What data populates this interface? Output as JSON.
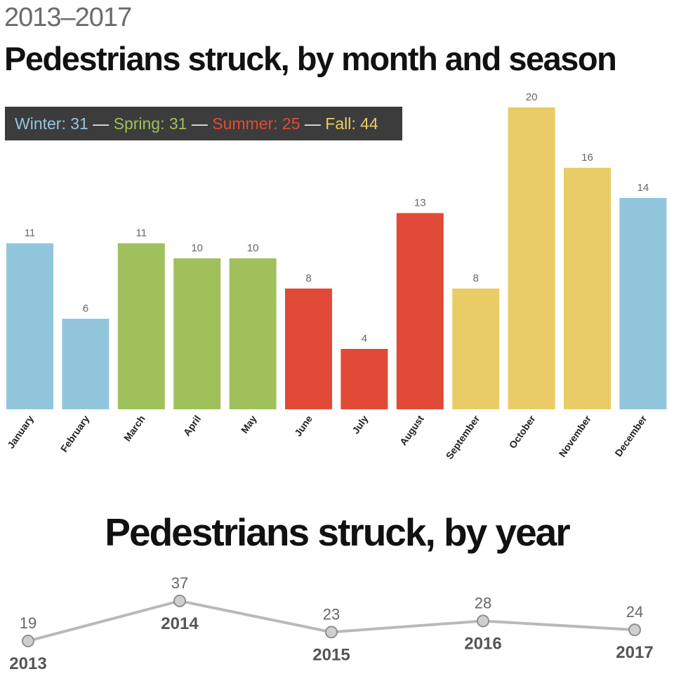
{
  "header": {
    "subtitle": "2013–2017",
    "title": "Pedestrians struck, by month and season"
  },
  "legend": {
    "items": [
      {
        "label": "Winter: 31",
        "color": "#92c6dd"
      },
      {
        "label": "Spring: 31",
        "color": "#a0c05c"
      },
      {
        "label": "Summer: 25",
        "color": "#e04a36"
      },
      {
        "label": "Fall: 44",
        "color": "#e9cc66"
      }
    ],
    "separator": "—"
  },
  "chart_data": [
    {
      "type": "bar",
      "title": "Pedestrians struck, by month and season",
      "categories": [
        "January",
        "February",
        "March",
        "April",
        "May",
        "June",
        "July",
        "August",
        "September",
        "October",
        "November",
        "December"
      ],
      "values": [
        11,
        6,
        11,
        10,
        10,
        8,
        4,
        13,
        8,
        20,
        16,
        14
      ],
      "seasons": [
        "Winter",
        "Winter",
        "Spring",
        "Spring",
        "Spring",
        "Summer",
        "Summer",
        "Summer",
        "Fall",
        "Fall",
        "Fall",
        "Winter"
      ],
      "season_colors": {
        "Winter": "#92c6dd",
        "Spring": "#a0c05c",
        "Summer": "#e04a36",
        "Fall": "#e9cc66"
      },
      "ylim": [
        0,
        20
      ]
    },
    {
      "type": "line",
      "title": "Pedestrians struck, by year",
      "x": [
        "2013",
        "2014",
        "2015",
        "2016",
        "2017"
      ],
      "values": [
        19,
        37,
        23,
        28,
        24
      ],
      "line_color": "#b9b9b9",
      "marker_color": "#cfcfcf",
      "marker_stroke": "#8f8f8f"
    }
  ]
}
